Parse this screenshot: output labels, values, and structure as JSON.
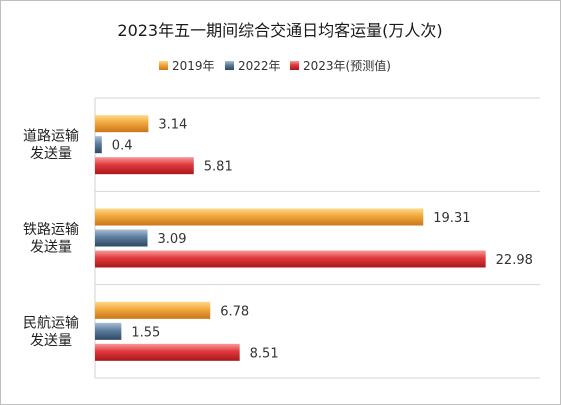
{
  "chart_data": {
    "type": "bar",
    "orientation": "horizontal",
    "title": "2023年五一期间综合交通日均客运量(万人次)",
    "categories": [
      [
        "道路运输",
        "发送量"
      ],
      [
        "铁路运输",
        "发送量"
      ],
      [
        "民航运输",
        "发送量"
      ]
    ],
    "series": [
      {
        "name": "2019年",
        "color": "#F0A830",
        "values": [
          3.14,
          19.31,
          6.78
        ],
        "labels": [
          "3.14",
          "19.31",
          "6.78"
        ]
      },
      {
        "name": "2022年",
        "color": "#4A6C8C",
        "values": [
          0.4,
          3.09,
          1.55
        ],
        "labels": [
          "0.4",
          "3.09",
          "1.55"
        ]
      },
      {
        "name": "2023年(预测值)",
        "color": "#E03438",
        "values": [
          5.81,
          22.98,
          8.51
        ],
        "labels": [
          "5.81",
          "22.98",
          "8.51"
        ]
      }
    ],
    "xlim": [
      0,
      25
    ],
    "grid": "horizontal separators between categories",
    "legend_position": "top-center"
  }
}
